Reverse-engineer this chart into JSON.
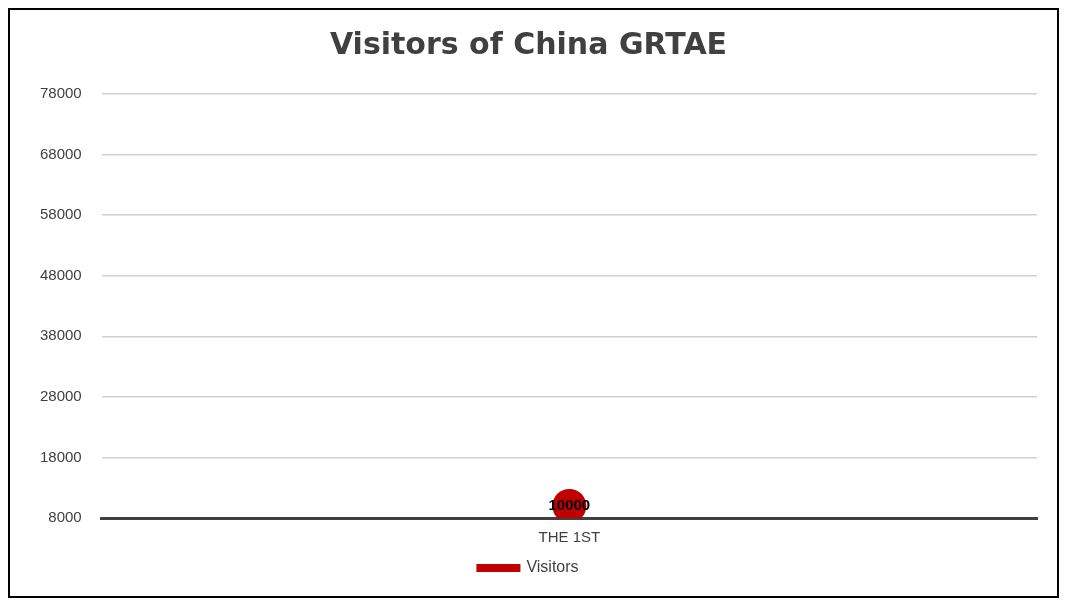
{
  "chart_data": {
    "type": "line",
    "title": "Visitors of China GRTAE",
    "categories": [
      "THE 1ST"
    ],
    "series": [
      {
        "name": "Visitors",
        "color": "#c00000",
        "values": [
          10000
        ]
      }
    ],
    "ylim": [
      8000,
      78000
    ],
    "yticks": [
      8000,
      18000,
      28000,
      38000,
      48000,
      58000,
      68000,
      78000
    ],
    "grid": "y",
    "legend": "bottom",
    "marker": "circle",
    "data_labels": true
  }
}
